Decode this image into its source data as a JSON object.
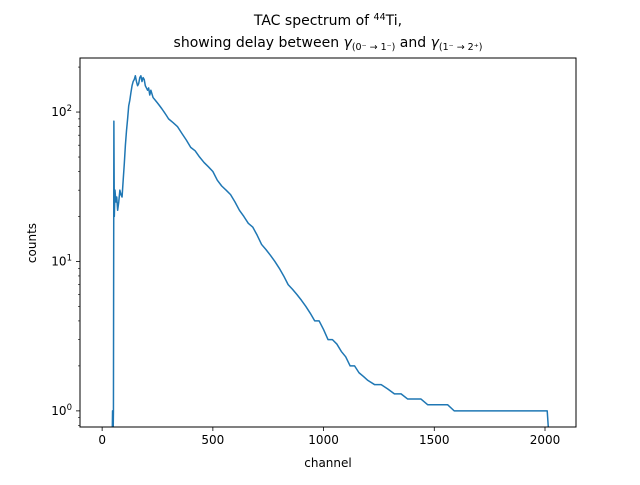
{
  "chart_data": {
    "type": "line",
    "title_line1_main": "TAC spectrum of ",
    "title_line1_sup": "44",
    "title_line1_end": "Ti,",
    "title_line2_a": "showing delay between ",
    "title_line2_gamma": "γ",
    "title_line2_sub1": "(0⁻ → 1⁻)",
    "title_line2_and": " and ",
    "title_line2_sub2": "(1⁻ → 2⁺)",
    "xlabel": "channel",
    "ylabel": "counts",
    "xlim": [
      -100,
      2140
    ],
    "ylim": [
      0.78,
      230
    ],
    "yscale": "log",
    "x_ticks": [
      0,
      500,
      1000,
      1500,
      2000
    ],
    "x_tick_labels": [
      "0",
      "500",
      "1000",
      "1500",
      "2000"
    ],
    "y_ticks": [
      1,
      10,
      100
    ],
    "y_tick_base": "10",
    "y_tick_exps": [
      "0",
      "1",
      "2"
    ],
    "grid": false,
    "color": "#1f77b4",
    "series": [
      {
        "x": [
          45,
          47,
          49,
          51,
          53,
          55,
          58,
          62,
          66,
          70,
          75,
          80,
          85,
          90,
          95,
          100,
          105,
          110,
          115,
          120,
          125,
          130,
          135,
          140,
          145,
          150,
          155,
          160,
          165,
          170,
          175,
          180,
          185,
          190,
          195,
          200,
          205,
          210,
          215,
          220,
          230,
          240,
          250,
          260,
          270,
          280,
          290,
          300,
          320,
          340,
          360,
          380,
          400,
          420,
          440,
          460,
          480,
          500,
          520,
          540,
          560,
          580,
          600,
          620,
          640,
          660,
          680,
          700,
          720,
          740,
          760,
          780,
          800,
          820,
          840,
          860,
          880,
          900,
          920,
          940,
          960,
          980,
          1000,
          1020,
          1040,
          1060,
          1080,
          1100,
          1120,
          1140,
          1160,
          1180,
          1200,
          1230,
          1260,
          1290,
          1320,
          1350,
          1380,
          1410,
          1440,
          1470,
          1500,
          1530,
          1560,
          1590,
          1620,
          1650,
          1680,
          1710,
          1740,
          1770,
          1800,
          1830,
          1860,
          1890,
          1920,
          1950,
          1980,
          2010,
          2020
        ],
        "y": [
          0.6,
          1,
          0.6,
          1,
          87,
          20,
          30,
          25,
          27,
          22,
          25,
          30,
          28,
          27,
          35,
          45,
          60,
          75,
          90,
          110,
          120,
          135,
          150,
          160,
          165,
          175,
          160,
          150,
          155,
          170,
          175,
          160,
          170,
          165,
          150,
          145,
          140,
          145,
          130,
          140,
          125,
          120,
          115,
          110,
          105,
          100,
          95,
          90,
          85,
          80,
          72,
          65,
          58,
          55,
          50,
          46,
          43,
          40,
          35,
          32,
          30,
          28,
          25,
          22,
          20,
          18,
          17,
          15,
          13,
          12,
          11,
          10,
          9,
          8,
          7,
          6.5,
          6,
          5.5,
          5,
          4.5,
          4,
          4,
          3.5,
          3,
          3,
          2.8,
          2.5,
          2.3,
          2,
          2,
          1.8,
          1.7,
          1.6,
          1.5,
          1.5,
          1.4,
          1.3,
          1.3,
          1.2,
          1.2,
          1.2,
          1.1,
          1.1,
          1.1,
          1.1,
          1,
          1,
          1,
          1,
          1,
          1,
          1,
          1,
          1,
          1,
          1,
          1,
          1,
          1,
          1,
          0.6
        ]
      }
    ]
  }
}
